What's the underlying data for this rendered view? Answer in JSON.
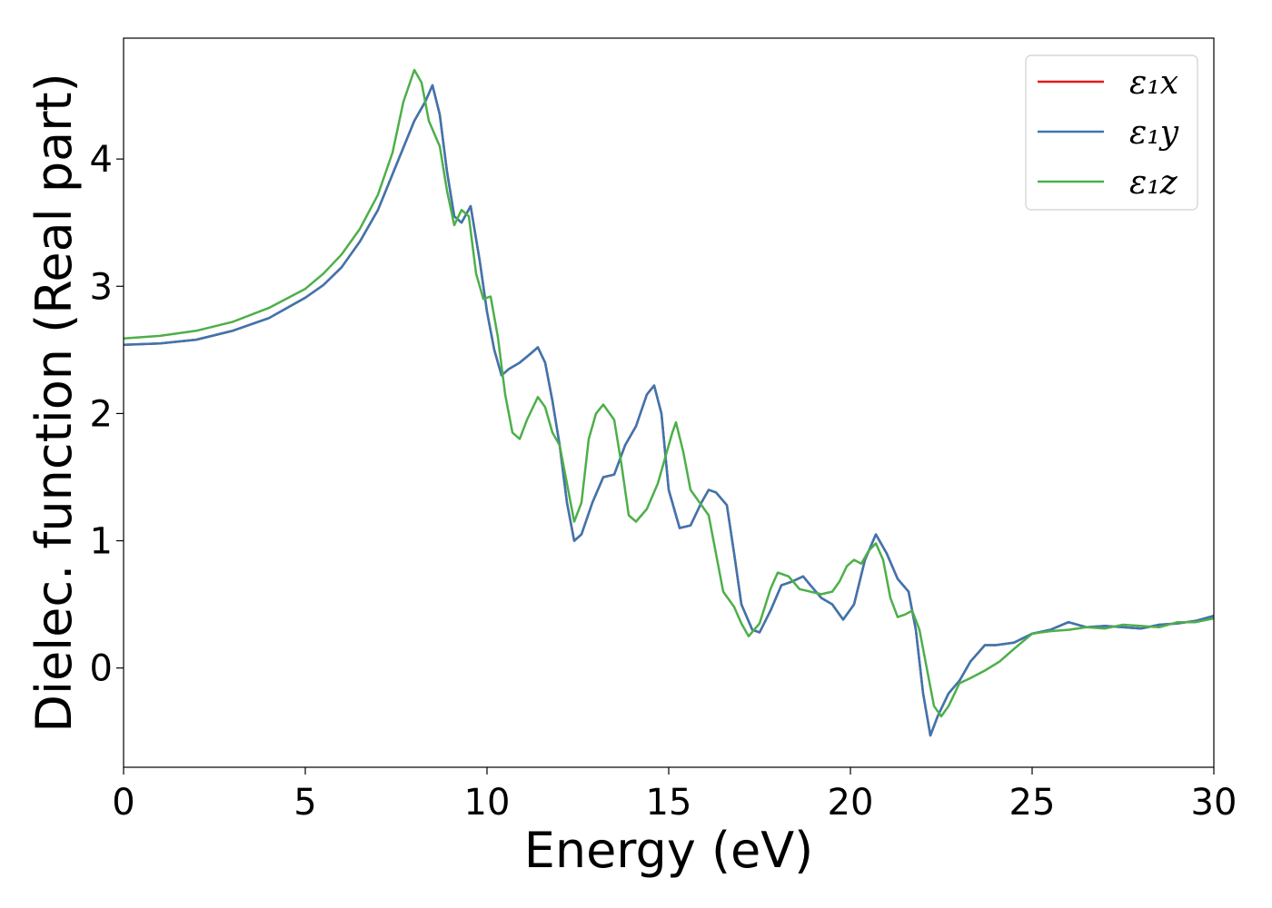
{
  "chart_data": {
    "type": "line",
    "xlabel": "Energy (eV)",
    "ylabel": "Dielec. function (Real part)",
    "xlim": [
      0,
      30
    ],
    "ylim": [
      -0.78,
      4.95
    ],
    "xticks": [
      0,
      5,
      10,
      15,
      20,
      25,
      30
    ],
    "yticks": [
      0,
      1,
      2,
      3,
      4
    ],
    "grid": false,
    "legend_position": "top-right",
    "series": [
      {
        "name": "ε₁x",
        "color": "#e41a1c",
        "points": [
          [
            0,
            2.54
          ],
          [
            1,
            2.55
          ],
          [
            2,
            2.58
          ],
          [
            3,
            2.65
          ],
          [
            4,
            2.75
          ],
          [
            5,
            2.91
          ],
          [
            5.5,
            3.01
          ],
          [
            6,
            3.15
          ],
          [
            6.5,
            3.35
          ],
          [
            7,
            3.6
          ],
          [
            7.5,
            3.95
          ],
          [
            8,
            4.3
          ],
          [
            8.3,
            4.45
          ],
          [
            8.5,
            4.58
          ],
          [
            8.7,
            4.35
          ],
          [
            8.9,
            3.9
          ],
          [
            9.1,
            3.55
          ],
          [
            9.3,
            3.5
          ],
          [
            9.55,
            3.63
          ],
          [
            9.8,
            3.2
          ],
          [
            10,
            2.8
          ],
          [
            10.2,
            2.5
          ],
          [
            10.4,
            2.3
          ],
          [
            10.6,
            2.35
          ],
          [
            10.9,
            2.4
          ],
          [
            11.2,
            2.47
          ],
          [
            11.4,
            2.52
          ],
          [
            11.6,
            2.4
          ],
          [
            11.8,
            2.1
          ],
          [
            12,
            1.75
          ],
          [
            12.2,
            1.3
          ],
          [
            12.4,
            1.0
          ],
          [
            12.6,
            1.05
          ],
          [
            12.9,
            1.3
          ],
          [
            13.2,
            1.5
          ],
          [
            13.5,
            1.52
          ],
          [
            13.8,
            1.75
          ],
          [
            14.1,
            1.9
          ],
          [
            14.4,
            2.15
          ],
          [
            14.6,
            2.22
          ],
          [
            14.8,
            2.0
          ],
          [
            15,
            1.4
          ],
          [
            15.3,
            1.1
          ],
          [
            15.6,
            1.12
          ],
          [
            15.9,
            1.3
          ],
          [
            16.1,
            1.4
          ],
          [
            16.3,
            1.38
          ],
          [
            16.6,
            1.28
          ],
          [
            16.8,
            0.9
          ],
          [
            17,
            0.5
          ],
          [
            17.3,
            0.3
          ],
          [
            17.5,
            0.28
          ],
          [
            17.8,
            0.45
          ],
          [
            18.1,
            0.65
          ],
          [
            18.4,
            0.68
          ],
          [
            18.7,
            0.72
          ],
          [
            18.9,
            0.65
          ],
          [
            19.2,
            0.55
          ],
          [
            19.5,
            0.5
          ],
          [
            19.8,
            0.38
          ],
          [
            20.1,
            0.5
          ],
          [
            20.4,
            0.85
          ],
          [
            20.7,
            1.05
          ],
          [
            21,
            0.9
          ],
          [
            21.3,
            0.7
          ],
          [
            21.6,
            0.6
          ],
          [
            21.8,
            0.3
          ],
          [
            22,
            -0.2
          ],
          [
            22.2,
            -0.53
          ],
          [
            22.4,
            -0.38
          ],
          [
            22.7,
            -0.2
          ],
          [
            23,
            -0.1
          ],
          [
            23.3,
            0.05
          ],
          [
            23.7,
            0.18
          ],
          [
            24,
            0.18
          ],
          [
            24.5,
            0.2
          ],
          [
            25,
            0.27
          ],
          [
            25.5,
            0.3
          ],
          [
            26,
            0.36
          ],
          [
            26.5,
            0.32
          ],
          [
            27,
            0.33
          ],
          [
            27.5,
            0.32
          ],
          [
            28,
            0.31
          ],
          [
            28.5,
            0.34
          ],
          [
            29,
            0.35
          ],
          [
            29.5,
            0.37
          ],
          [
            30,
            0.41
          ]
        ]
      },
      {
        "name": "ε₁y",
        "color": "#3b76b0",
        "points": [
          [
            0,
            2.54
          ],
          [
            1,
            2.55
          ],
          [
            2,
            2.58
          ],
          [
            3,
            2.65
          ],
          [
            4,
            2.75
          ],
          [
            5,
            2.91
          ],
          [
            5.5,
            3.01
          ],
          [
            6,
            3.15
          ],
          [
            6.5,
            3.35
          ],
          [
            7,
            3.6
          ],
          [
            7.5,
            3.95
          ],
          [
            8,
            4.3
          ],
          [
            8.3,
            4.45
          ],
          [
            8.5,
            4.58
          ],
          [
            8.7,
            4.35
          ],
          [
            8.9,
            3.9
          ],
          [
            9.1,
            3.55
          ],
          [
            9.3,
            3.5
          ],
          [
            9.55,
            3.63
          ],
          [
            9.8,
            3.2
          ],
          [
            10,
            2.8
          ],
          [
            10.2,
            2.5
          ],
          [
            10.4,
            2.3
          ],
          [
            10.6,
            2.35
          ],
          [
            10.9,
            2.4
          ],
          [
            11.2,
            2.47
          ],
          [
            11.4,
            2.52
          ],
          [
            11.6,
            2.4
          ],
          [
            11.8,
            2.1
          ],
          [
            12,
            1.75
          ],
          [
            12.2,
            1.3
          ],
          [
            12.4,
            1.0
          ],
          [
            12.6,
            1.05
          ],
          [
            12.9,
            1.3
          ],
          [
            13.2,
            1.5
          ],
          [
            13.5,
            1.52
          ],
          [
            13.8,
            1.75
          ],
          [
            14.1,
            1.9
          ],
          [
            14.4,
            2.15
          ],
          [
            14.6,
            2.22
          ],
          [
            14.8,
            2.0
          ],
          [
            15,
            1.4
          ],
          [
            15.3,
            1.1
          ],
          [
            15.6,
            1.12
          ],
          [
            15.9,
            1.3
          ],
          [
            16.1,
            1.4
          ],
          [
            16.3,
            1.38
          ],
          [
            16.6,
            1.28
          ],
          [
            16.8,
            0.9
          ],
          [
            17,
            0.5
          ],
          [
            17.3,
            0.3
          ],
          [
            17.5,
            0.28
          ],
          [
            17.8,
            0.45
          ],
          [
            18.1,
            0.65
          ],
          [
            18.4,
            0.68
          ],
          [
            18.7,
            0.72
          ],
          [
            18.9,
            0.65
          ],
          [
            19.2,
            0.55
          ],
          [
            19.5,
            0.5
          ],
          [
            19.8,
            0.38
          ],
          [
            20.1,
            0.5
          ],
          [
            20.4,
            0.85
          ],
          [
            20.7,
            1.05
          ],
          [
            21,
            0.9
          ],
          [
            21.3,
            0.7
          ],
          [
            21.6,
            0.6
          ],
          [
            21.8,
            0.3
          ],
          [
            22,
            -0.2
          ],
          [
            22.2,
            -0.53
          ],
          [
            22.4,
            -0.38
          ],
          [
            22.7,
            -0.2
          ],
          [
            23,
            -0.1
          ],
          [
            23.3,
            0.05
          ],
          [
            23.7,
            0.18
          ],
          [
            24,
            0.18
          ],
          [
            24.5,
            0.2
          ],
          [
            25,
            0.27
          ],
          [
            25.5,
            0.3
          ],
          [
            26,
            0.36
          ],
          [
            26.5,
            0.32
          ],
          [
            27,
            0.33
          ],
          [
            27.5,
            0.32
          ],
          [
            28,
            0.31
          ],
          [
            28.5,
            0.34
          ],
          [
            29,
            0.35
          ],
          [
            29.5,
            0.37
          ],
          [
            30,
            0.41
          ]
        ]
      },
      {
        "name": "ε₁z",
        "color": "#4daf4a",
        "points": [
          [
            0,
            2.59
          ],
          [
            1,
            2.61
          ],
          [
            2,
            2.65
          ],
          [
            3,
            2.72
          ],
          [
            4,
            2.83
          ],
          [
            5,
            2.98
          ],
          [
            5.5,
            3.1
          ],
          [
            6,
            3.25
          ],
          [
            6.5,
            3.45
          ],
          [
            7,
            3.72
          ],
          [
            7.4,
            4.05
          ],
          [
            7.7,
            4.45
          ],
          [
            8,
            4.7
          ],
          [
            8.2,
            4.6
          ],
          [
            8.4,
            4.3
          ],
          [
            8.7,
            4.1
          ],
          [
            8.9,
            3.75
          ],
          [
            9.1,
            3.48
          ],
          [
            9.3,
            3.6
          ],
          [
            9.5,
            3.55
          ],
          [
            9.7,
            3.1
          ],
          [
            9.9,
            2.9
          ],
          [
            10.1,
            2.92
          ],
          [
            10.3,
            2.6
          ],
          [
            10.5,
            2.15
          ],
          [
            10.7,
            1.85
          ],
          [
            10.9,
            1.8
          ],
          [
            11.1,
            1.95
          ],
          [
            11.4,
            2.13
          ],
          [
            11.6,
            2.05
          ],
          [
            11.8,
            1.85
          ],
          [
            12,
            1.75
          ],
          [
            12.2,
            1.45
          ],
          [
            12.4,
            1.15
          ],
          [
            12.6,
            1.3
          ],
          [
            12.8,
            1.8
          ],
          [
            13,
            2.0
          ],
          [
            13.2,
            2.07
          ],
          [
            13.5,
            1.95
          ],
          [
            13.7,
            1.6
          ],
          [
            13.9,
            1.2
          ],
          [
            14.1,
            1.15
          ],
          [
            14.4,
            1.25
          ],
          [
            14.7,
            1.45
          ],
          [
            14.9,
            1.65
          ],
          [
            15.1,
            1.85
          ],
          [
            15.2,
            1.93
          ],
          [
            15.4,
            1.7
          ],
          [
            15.6,
            1.4
          ],
          [
            15.8,
            1.32
          ],
          [
            16.1,
            1.2
          ],
          [
            16.3,
            0.9
          ],
          [
            16.5,
            0.6
          ],
          [
            16.8,
            0.48
          ],
          [
            17,
            0.35
          ],
          [
            17.2,
            0.25
          ],
          [
            17.5,
            0.35
          ],
          [
            17.8,
            0.62
          ],
          [
            18,
            0.75
          ],
          [
            18.3,
            0.72
          ],
          [
            18.6,
            0.62
          ],
          [
            18.9,
            0.6
          ],
          [
            19.2,
            0.58
          ],
          [
            19.5,
            0.6
          ],
          [
            19.7,
            0.68
          ],
          [
            19.9,
            0.8
          ],
          [
            20.1,
            0.85
          ],
          [
            20.3,
            0.82
          ],
          [
            20.5,
            0.92
          ],
          [
            20.7,
            0.98
          ],
          [
            20.9,
            0.85
          ],
          [
            21.1,
            0.55
          ],
          [
            21.3,
            0.4
          ],
          [
            21.5,
            0.42
          ],
          [
            21.7,
            0.45
          ],
          [
            21.9,
            0.3
          ],
          [
            22.1,
            0.0
          ],
          [
            22.3,
            -0.3
          ],
          [
            22.5,
            -0.38
          ],
          [
            22.7,
            -0.3
          ],
          [
            23,
            -0.12
          ],
          [
            23.3,
            -0.08
          ],
          [
            23.7,
            -0.02
          ],
          [
            24.1,
            0.05
          ],
          [
            24.5,
            0.15
          ],
          [
            25,
            0.27
          ],
          [
            25.5,
            0.29
          ],
          [
            26,
            0.3
          ],
          [
            26.5,
            0.32
          ],
          [
            27,
            0.31
          ],
          [
            27.5,
            0.34
          ],
          [
            28,
            0.33
          ],
          [
            28.5,
            0.32
          ],
          [
            29,
            0.36
          ],
          [
            29.5,
            0.36
          ],
          [
            30,
            0.39
          ]
        ]
      }
    ]
  }
}
